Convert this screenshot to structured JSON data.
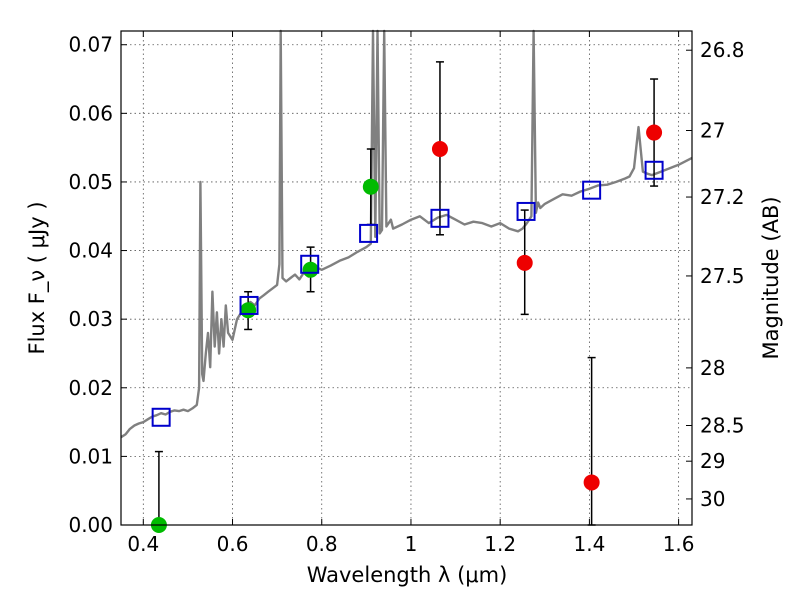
{
  "chart_data": {
    "type": "scatter",
    "title": "",
    "xlabel": "Wavelength  λ (μm)",
    "ylabel": "Flux  F_ν  ( μJy )",
    "ylabel_right": "Magnitude (AB)",
    "xlim": [
      0.35,
      1.63
    ],
    "ylim": [
      0.0,
      0.072
    ],
    "grid": true,
    "x_ticks": [
      0.4,
      0.6,
      0.8,
      1.0,
      1.2,
      1.4,
      1.6
    ],
    "x_tick_labels": [
      "0.4",
      "0.6",
      "0.8",
      "1",
      "1.2",
      "1.4",
      "1.6"
    ],
    "y_ticks": [
      0.0,
      0.01,
      0.02,
      0.03,
      0.04,
      0.05,
      0.06,
      0.07
    ],
    "y_tick_labels": [
      "0.00",
      "0.01",
      "0.02",
      "0.03",
      "0.04",
      "0.05",
      "0.06",
      "0.07"
    ],
    "mag_ticks": [
      {
        "label": "26.8",
        "flux": 0.0692
      },
      {
        "label": "27",
        "flux": 0.0575
      },
      {
        "label": "27.2",
        "flux": 0.0478
      },
      {
        "label": "27.5",
        "flux": 0.0363
      },
      {
        "label": "28",
        "flux": 0.0229
      },
      {
        "label": "28.5",
        "flux": 0.0145
      },
      {
        "label": "29",
        "flux": 0.0093
      },
      {
        "label": "30",
        "flux": 0.0038
      }
    ],
    "colors": {
      "spectrum": "#808080",
      "green": "#00bb00",
      "red": "#ee0000",
      "model": "#0000cc",
      "errorbar": "#000000"
    },
    "series": [
      {
        "kind": "spectrum",
        "x": [
          0.35,
          0.36,
          0.37,
          0.38,
          0.39,
          0.4,
          0.41,
          0.42,
          0.43,
          0.44,
          0.45,
          0.46,
          0.47,
          0.48,
          0.49,
          0.5,
          0.51,
          0.52,
          0.525,
          0.528,
          0.532,
          0.535,
          0.54,
          0.545,
          0.55,
          0.555,
          0.56,
          0.565,
          0.57,
          0.575,
          0.58,
          0.585,
          0.59,
          0.6,
          0.61,
          0.62,
          0.63,
          0.64,
          0.65,
          0.66,
          0.67,
          0.68,
          0.69,
          0.7,
          0.705,
          0.708,
          0.712,
          0.72,
          0.73,
          0.74,
          0.75,
          0.76,
          0.77,
          0.78,
          0.79,
          0.8,
          0.82,
          0.84,
          0.86,
          0.88,
          0.9,
          0.91,
          0.915,
          0.92,
          0.925,
          0.93,
          0.935,
          0.94,
          0.945,
          0.95,
          0.955,
          0.96,
          0.98,
          1.0,
          1.02,
          1.04,
          1.06,
          1.08,
          1.1,
          1.12,
          1.14,
          1.16,
          1.18,
          1.2,
          1.22,
          1.24,
          1.25,
          1.26,
          1.27,
          1.275,
          1.28,
          1.285,
          1.29,
          1.3,
          1.32,
          1.34,
          1.36,
          1.38,
          1.4,
          1.42,
          1.44,
          1.46,
          1.48,
          1.49,
          1.5,
          1.51,
          1.52,
          1.53,
          1.54,
          1.56,
          1.58,
          1.6,
          1.63
        ],
        "y": [
          0.0128,
          0.0132,
          0.014,
          0.0145,
          0.0148,
          0.015,
          0.0154,
          0.0158,
          0.016,
          0.0163,
          0.0161,
          0.0165,
          0.0167,
          0.0166,
          0.0168,
          0.0166,
          0.017,
          0.0175,
          0.02,
          0.05,
          0.022,
          0.021,
          0.025,
          0.028,
          0.023,
          0.034,
          0.026,
          0.031,
          0.025,
          0.03,
          0.026,
          0.032,
          0.028,
          0.027,
          0.03,
          0.031,
          0.032,
          0.0325,
          0.032,
          0.033,
          0.0335,
          0.034,
          0.0345,
          0.035,
          0.038,
          0.072,
          0.036,
          0.0355,
          0.036,
          0.0365,
          0.0358,
          0.0368,
          0.0362,
          0.037,
          0.0375,
          0.0372,
          0.0378,
          0.0385,
          0.039,
          0.0398,
          0.0405,
          0.041,
          0.072,
          0.042,
          0.072,
          0.0425,
          0.043,
          0.072,
          0.0435,
          0.044,
          0.0445,
          0.0432,
          0.0438,
          0.0445,
          0.045,
          0.044,
          0.0448,
          0.0452,
          0.0445,
          0.0438,
          0.0442,
          0.044,
          0.0435,
          0.044,
          0.0432,
          0.0428,
          0.0432,
          0.044,
          0.045,
          0.072,
          0.0455,
          0.047,
          0.0462,
          0.0468,
          0.0475,
          0.0482,
          0.048,
          0.0486,
          0.049,
          0.0495,
          0.0496,
          0.05,
          0.0505,
          0.0508,
          0.052,
          0.058,
          0.0515,
          0.0512,
          0.051,
          0.0515,
          0.052,
          0.0525,
          0.0535
        ]
      },
      {
        "kind": "points",
        "name": "green",
        "x": [
          0.435,
          0.635,
          0.775,
          0.91
        ],
        "y": [
          0.0,
          0.0313,
          0.0372,
          0.0493
        ],
        "err_low": [
          0.0,
          0.0028,
          0.0032,
          0.0055
        ],
        "err_high": [
          0.0107,
          0.0027,
          0.0033,
          0.0055
        ]
      },
      {
        "kind": "points",
        "name": "red",
        "x": [
          1.065,
          1.255,
          1.405,
          1.545
        ],
        "y": [
          0.0548,
          0.0382,
          0.0062,
          0.0572
        ],
        "err_low": [
          0.0125,
          0.0075,
          0.0062,
          0.0078
        ],
        "err_high": [
          0.0127,
          0.0077,
          0.0182,
          0.0078
        ]
      },
      {
        "kind": "squares",
        "name": "model",
        "x": [
          0.44,
          0.637,
          0.773,
          0.905,
          1.065,
          1.258,
          1.405,
          1.545
        ],
        "y": [
          0.0157,
          0.032,
          0.038,
          0.0425,
          0.0447,
          0.0457,
          0.0488,
          0.0517
        ]
      }
    ]
  }
}
